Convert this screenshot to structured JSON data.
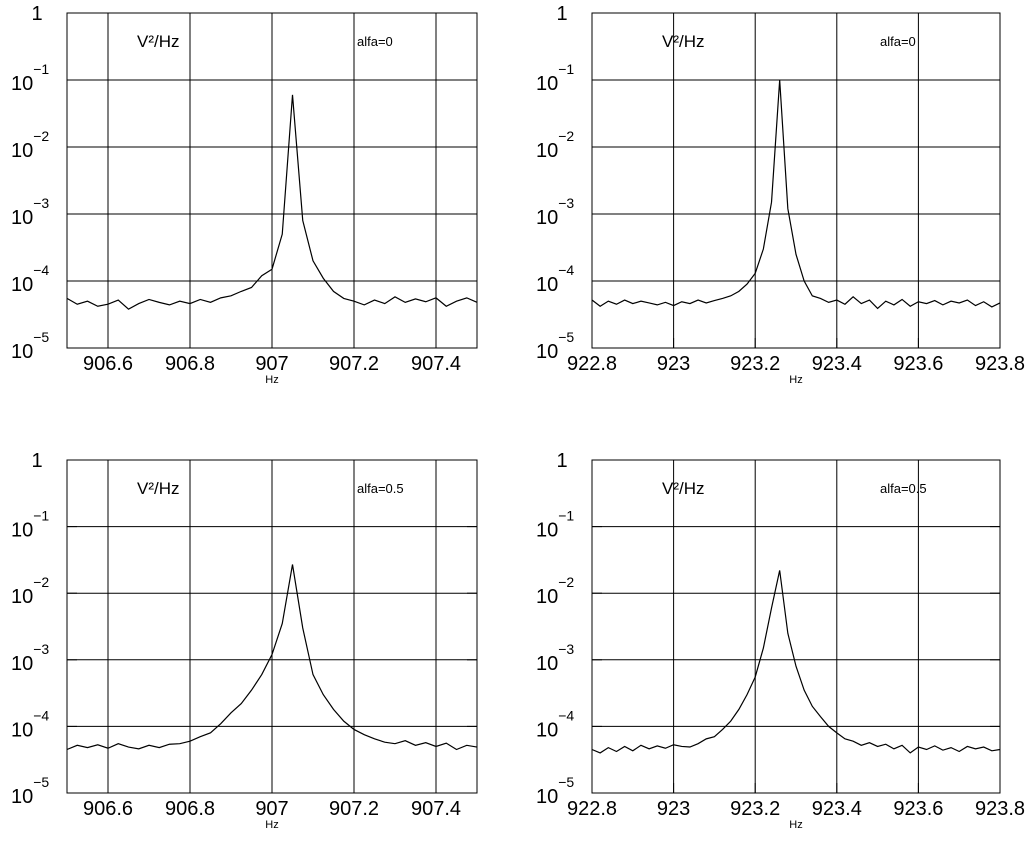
{
  "chart_data": [
    {
      "type": "line",
      "log_y": true,
      "grid": true,
      "color": "#000000",
      "y_label": "V²/Hz",
      "annotation": "alfa=0",
      "x_label": "Hz",
      "xlim": [
        906.5,
        907.5
      ],
      "xticks": [
        906.6,
        906.8,
        907,
        907.2,
        907.4
      ],
      "ylim": [
        1e-05,
        1
      ],
      "yticks": [
        {
          "value": 1e-05,
          "label": "10",
          "exponent": "−5"
        },
        {
          "value": 0.0001,
          "label": "10",
          "exponent": "−4"
        },
        {
          "value": 0.001,
          "label": "10",
          "exponent": "−3"
        },
        {
          "value": 0.01,
          "label": "10",
          "exponent": "−2"
        },
        {
          "value": 0.1,
          "label": "10",
          "exponent": "−1"
        },
        1
      ],
      "x": [
        906.5,
        906.525,
        906.55,
        906.575,
        906.6,
        906.625,
        906.65,
        906.675,
        906.7,
        906.725,
        906.75,
        906.775,
        906.8,
        906.825,
        906.85,
        906.875,
        906.9,
        906.925,
        906.95,
        906.975,
        907.0,
        907.025,
        907.05,
        907.075,
        907.1,
        907.125,
        907.15,
        907.175,
        907.2,
        907.225,
        907.25,
        907.275,
        907.3,
        907.325,
        907.35,
        907.375,
        907.4,
        907.425,
        907.45,
        907.475,
        907.5
      ],
      "values": [
        5.5e-05,
        4.5e-05,
        5e-05,
        4.2e-05,
        4.5e-05,
        5.2e-05,
        3.8e-05,
        4.6e-05,
        5.3e-05,
        4.8e-05,
        4.4e-05,
        5e-05,
        4.6e-05,
        5.3e-05,
        4.8e-05,
        5.6e-05,
        6e-05,
        7e-05,
        8e-05,
        0.00012,
        0.00015,
        0.0005,
        0.06,
        0.0008,
        0.0002,
        0.00011,
        7e-05,
        5.5e-05,
        5e-05,
        4.4e-05,
        5.2e-05,
        4.6e-05,
        5.8e-05,
        4.8e-05,
        5.4e-05,
        4.9e-05,
        5.6e-05,
        4.2e-05,
        5e-05,
        5.6e-05,
        4.8e-05
      ]
    },
    {
      "type": "line",
      "log_y": true,
      "grid": true,
      "color": "#000000",
      "y_label": "V²/Hz",
      "annotation": "alfa=0",
      "x_label": "Hz",
      "xlim": [
        922.8,
        923.8
      ],
      "xticks": [
        922.8,
        923,
        923.2,
        923.4,
        923.6,
        923.8
      ],
      "ylim": [
        1e-05,
        1
      ],
      "yticks": [
        {
          "value": 1e-05,
          "label": "10",
          "exponent": "−5"
        },
        {
          "value": 0.0001,
          "label": "10",
          "exponent": "−4"
        },
        {
          "value": 0.001,
          "label": "10",
          "exponent": "−3"
        },
        {
          "value": 0.01,
          "label": "10",
          "exponent": "−2"
        },
        {
          "value": 0.1,
          "label": "10",
          "exponent": "−1"
        },
        1
      ],
      "x": [
        922.8,
        922.82,
        922.84,
        922.86,
        922.88,
        922.9,
        922.92,
        922.94,
        922.96,
        922.98,
        923.0,
        923.02,
        923.04,
        923.06,
        923.08,
        923.1,
        923.12,
        923.14,
        923.16,
        923.18,
        923.2,
        923.22,
        923.24,
        923.26,
        923.28,
        923.3,
        923.32,
        923.34,
        923.36,
        923.38,
        923.4,
        923.42,
        923.44,
        923.46,
        923.48,
        923.5,
        923.52,
        923.54,
        923.56,
        923.58,
        923.6,
        923.62,
        923.64,
        923.66,
        923.68,
        923.7,
        923.72,
        923.74,
        923.76,
        923.78,
        923.8
      ],
      "values": [
        5.2e-05,
        4.2e-05,
        5e-05,
        4.5e-05,
        5.2e-05,
        4.6e-05,
        5e-05,
        4.7e-05,
        4.4e-05,
        4.8e-05,
        4.3e-05,
        4.9e-05,
        4.6e-05,
        5.2e-05,
        4.7e-05,
        5.1e-05,
        5.5e-05,
        6e-05,
        7e-05,
        9e-05,
        0.00013,
        0.0003,
        0.0015,
        0.1,
        0.0012,
        0.00025,
        0.0001,
        6e-05,
        5.5e-05,
        4.8e-05,
        5.2e-05,
        4.5e-05,
        5.8e-05,
        4.6e-05,
        5.2e-05,
        3.9e-05,
        5e-05,
        4.4e-05,
        5.3e-05,
        4.2e-05,
        4.9e-05,
        4.6e-05,
        5.1e-05,
        4.4e-05,
        5e-05,
        4.7e-05,
        5.2e-05,
        4.3e-05,
        4.9e-05,
        4.1e-05,
        4.7e-05
      ]
    },
    {
      "type": "line",
      "log_y": true,
      "grid": true,
      "color": "#000000",
      "y_label": "V²/Hz",
      "annotation": "alfa=0.5",
      "x_label": "Hz",
      "xlim": [
        906.5,
        907.5
      ],
      "xticks": [
        906.6,
        906.8,
        907,
        907.2,
        907.4
      ],
      "ylim": [
        1e-05,
        1
      ],
      "yticks": [
        {
          "value": 1e-05,
          "label": "10",
          "exponent": "−5"
        },
        {
          "value": 0.0001,
          "label": "10",
          "exponent": "−4"
        },
        {
          "value": 0.001,
          "label": "10",
          "exponent": "−3"
        },
        {
          "value": 0.01,
          "label": "10",
          "exponent": "−2"
        },
        {
          "value": 0.1,
          "label": "10",
          "exponent": "−1"
        },
        1
      ],
      "x": [
        906.5,
        906.525,
        906.55,
        906.575,
        906.6,
        906.625,
        906.65,
        906.675,
        906.7,
        906.725,
        906.75,
        906.775,
        906.8,
        906.825,
        906.85,
        906.875,
        906.9,
        906.925,
        906.95,
        906.975,
        907.0,
        907.025,
        907.05,
        907.075,
        907.1,
        907.125,
        907.15,
        907.175,
        907.2,
        907.225,
        907.25,
        907.275,
        907.3,
        907.325,
        907.35,
        907.375,
        907.4,
        907.425,
        907.45,
        907.475,
        907.5
      ],
      "values": [
        4.5e-05,
        5.2e-05,
        4.8e-05,
        5.3e-05,
        4.7e-05,
        5.5e-05,
        4.9e-05,
        4.6e-05,
        5.2e-05,
        4.8e-05,
        5.4e-05,
        5.5e-05,
        6e-05,
        7e-05,
        8e-05,
        0.00011,
        0.00016,
        0.00022,
        0.00035,
        0.0006,
        0.0012,
        0.0035,
        0.027,
        0.003,
        0.0006,
        0.0003,
        0.00018,
        0.00012,
        9e-05,
        7.5e-05,
        6.5e-05,
        5.8e-05,
        5.5e-05,
        6.1e-05,
        5.2e-05,
        5.7e-05,
        5e-05,
        5.6e-05,
        4.5e-05,
        5.2e-05,
        4.9e-05
      ]
    },
    {
      "type": "line",
      "log_y": true,
      "grid": true,
      "color": "#000000",
      "y_label": "V²/Hz",
      "annotation": "alfa=0.5",
      "x_label": "Hz",
      "xlim": [
        922.8,
        923.8
      ],
      "xticks": [
        922.8,
        923,
        923.2,
        923.4,
        923.6,
        923.8
      ],
      "ylim": [
        1e-05,
        1
      ],
      "yticks": [
        {
          "value": 1e-05,
          "label": "10",
          "exponent": "−5"
        },
        {
          "value": 0.0001,
          "label": "10",
          "exponent": "−4"
        },
        {
          "value": 0.001,
          "label": "10",
          "exponent": "−3"
        },
        {
          "value": 0.01,
          "label": "10",
          "exponent": "−2"
        },
        {
          "value": 0.1,
          "label": "10",
          "exponent": "−1"
        },
        1
      ],
      "x": [
        922.8,
        922.82,
        922.84,
        922.86,
        922.88,
        922.9,
        922.92,
        922.94,
        922.96,
        922.98,
        923.0,
        923.02,
        923.04,
        923.06,
        923.08,
        923.1,
        923.12,
        923.14,
        923.16,
        923.18,
        923.2,
        923.22,
        923.24,
        923.26,
        923.28,
        923.3,
        923.32,
        923.34,
        923.36,
        923.38,
        923.4,
        923.42,
        923.44,
        923.46,
        923.48,
        923.5,
        923.52,
        923.54,
        923.56,
        923.58,
        923.6,
        923.62,
        923.64,
        923.66,
        923.68,
        923.7,
        923.72,
        923.74,
        923.76,
        923.78,
        923.8
      ],
      "values": [
        4.5e-05,
        4e-05,
        4.8e-05,
        4.2e-05,
        5e-05,
        4.3e-05,
        5.2e-05,
        4.6e-05,
        5.1e-05,
        4.7e-05,
        5.3e-05,
        5e-05,
        4.9e-05,
        5.5e-05,
        6.5e-05,
        7e-05,
        9e-05,
        0.00012,
        0.00018,
        0.0003,
        0.00055,
        0.0015,
        0.006,
        0.022,
        0.0025,
        0.0008,
        0.00035,
        0.0002,
        0.00014,
        0.0001,
        8e-05,
        6.5e-05,
        6e-05,
        5.2e-05,
        5.7e-05,
        5e-05,
        5.4e-05,
        4.6e-05,
        5.2e-05,
        4e-05,
        4.9e-05,
        4.5e-05,
        5.1e-05,
        4.4e-05,
        4.8e-05,
        4.2e-05,
        5e-05,
        4.6e-05,
        4.9e-05,
        4.3e-05,
        4.5e-05
      ]
    }
  ]
}
